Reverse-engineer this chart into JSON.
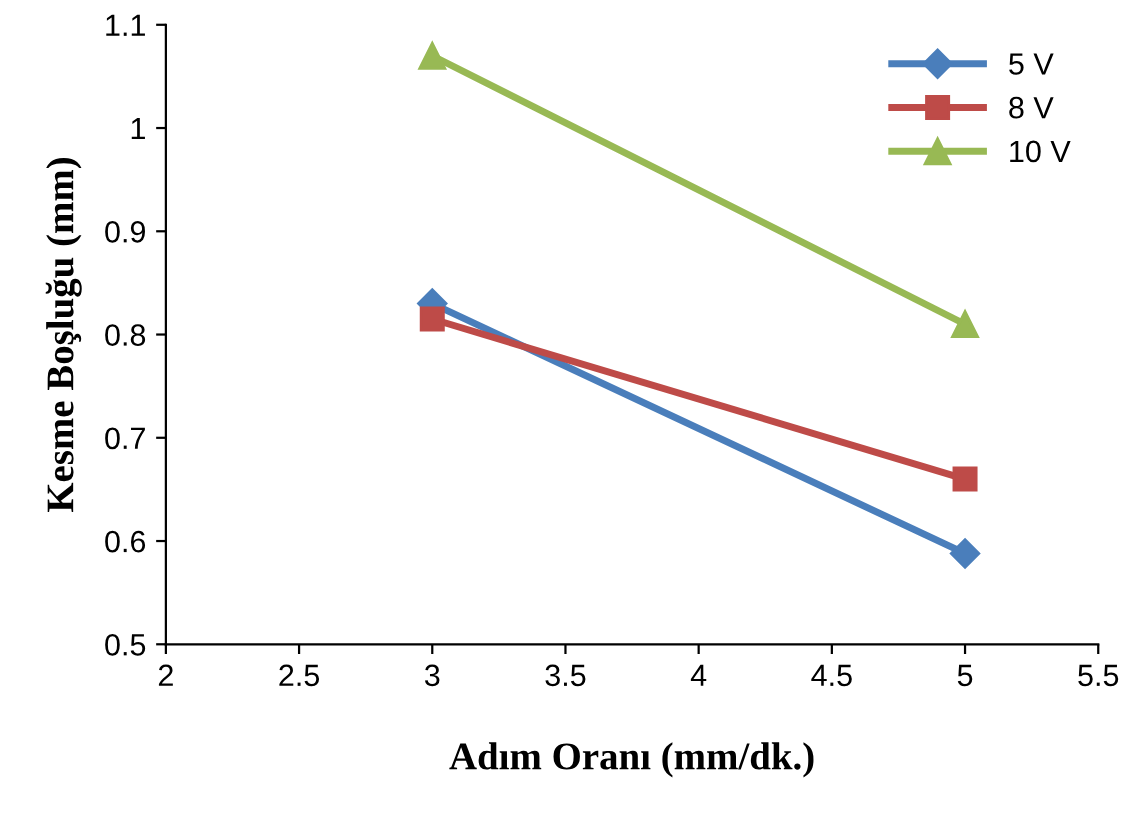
{
  "chart_data": {
    "type": "line",
    "xlabel": "Adım Oranı (mm/dk.)",
    "ylabel": "Kesme Boşluğu (mm)",
    "x": [
      3,
      5
    ],
    "series": [
      {
        "name": "5 V",
        "color": "#4a7ebb",
        "values": [
          0.83,
          0.588
        ],
        "marker": "diamond"
      },
      {
        "name": "8 V",
        "color": "#be4b48",
        "values": [
          0.815,
          0.66
        ],
        "marker": "square"
      },
      {
        "name": "10 V",
        "color": "#98b954",
        "values": [
          1.07,
          0.81
        ],
        "marker": "triangle"
      }
    ],
    "xlim": [
      2,
      5.5
    ],
    "xticks": [
      2,
      2.5,
      3,
      3.5,
      4,
      4.5,
      5,
      5.5
    ],
    "ylim": [
      0.5,
      1.1
    ],
    "yticks": [
      0.5,
      0.6,
      0.7,
      0.8,
      0.9,
      1,
      1.1
    ],
    "grid": false,
    "legend": "top right",
    "line_style": "solid"
  }
}
